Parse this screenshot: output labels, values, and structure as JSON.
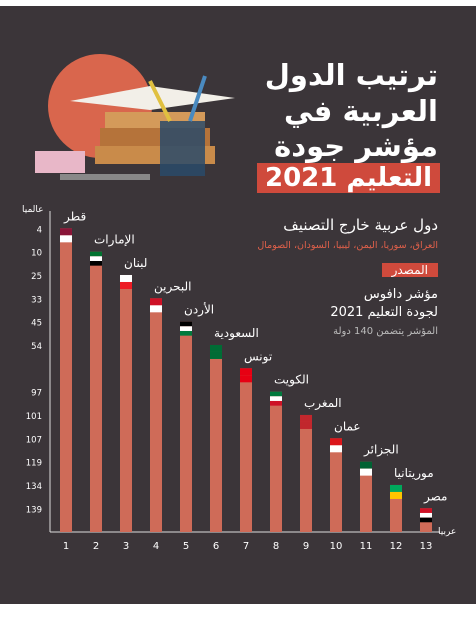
{
  "header": {
    "title_lines": [
      "ترتيب الدول",
      "العربية في",
      "مؤشر جودة",
      "التعليم 2021"
    ]
  },
  "excluded": {
    "title": "دول عربية خارج التصنيف",
    "countries": "العراق، سوريا، اليمن، ليبيا، السودان، الصومال"
  },
  "source": {
    "label": "المصدر",
    "lines": [
      "مؤشر دافوس",
      "لجودة التعليم 2021"
    ],
    "note": "المؤشر يتضمن 140 دولة"
  },
  "chart_data": {
    "type": "bar",
    "y_axis_label": "عالميا",
    "x_axis_label": "عربيا",
    "color": "#cf6b58",
    "categories": [
      "قطر",
      "الإمارات",
      "لبنان",
      "البحرين",
      "الأردن",
      "السعودية",
      "تونس",
      "الكويت",
      "المغرب",
      "عمان",
      "الجزائر",
      "موريتانيا",
      "مصر"
    ],
    "values": [
      1,
      2,
      3,
      4,
      5,
      6,
      7,
      8,
      9,
      10,
      11,
      12,
      13
    ],
    "world_ranks": [
      4,
      10,
      25,
      33,
      45,
      54,
      null,
      97,
      101,
      107,
      119,
      134,
      139
    ]
  }
}
